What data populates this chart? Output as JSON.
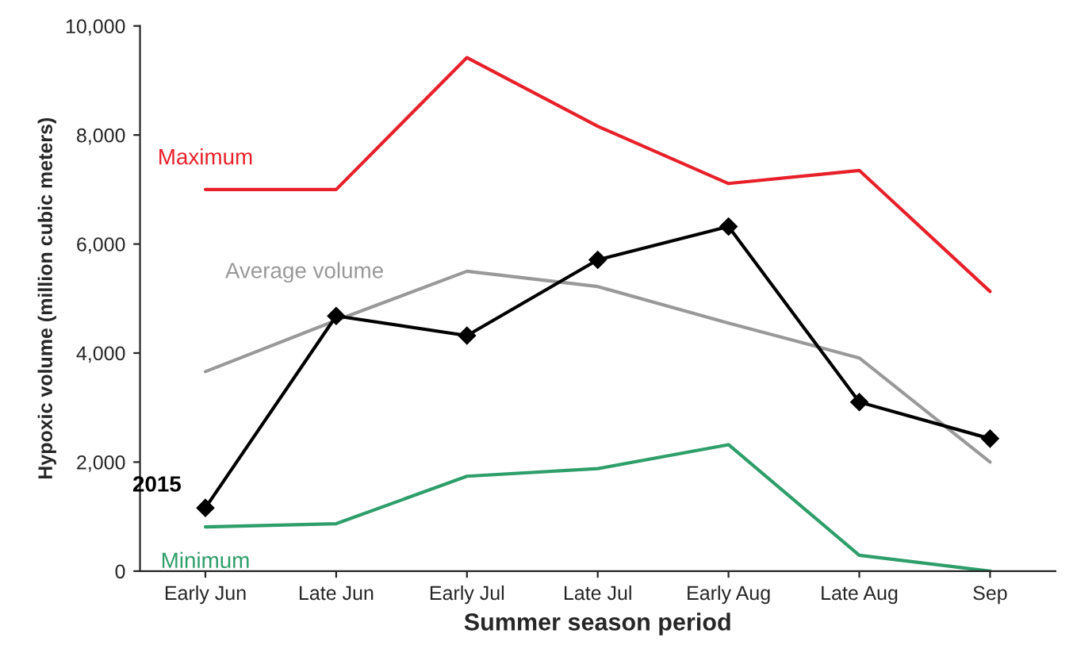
{
  "chart_data": {
    "type": "line",
    "xlabel": "Summer season period",
    "ylabel": "Hypoxic volume (million cubic meters)",
    "categories": [
      "Early Jun",
      "Late Jun",
      "Early Jul",
      "Late Jul",
      "Early Aug",
      "Late Aug",
      "Sep"
    ],
    "series": [
      {
        "name": "Maximum",
        "color": "#e8202a",
        "marker": "none",
        "values": [
          7000,
          7000,
          9420,
          8160,
          7110,
          7350,
          5130
        ]
      },
      {
        "name": "Average volume",
        "color": "#999999",
        "marker": "none",
        "values": [
          3660,
          4600,
          5500,
          5220,
          4550,
          3910,
          2000
        ]
      },
      {
        "name": "2015",
        "color": "#000000",
        "marker": "diamond",
        "values": [
          1160,
          4680,
          4320,
          5710,
          6320,
          3100,
          2430
        ]
      },
      {
        "name": "Minimum",
        "color": "#2e9e6a",
        "marker": "none",
        "values": [
          810,
          870,
          1740,
          1880,
          2320,
          290,
          0
        ]
      }
    ],
    "ylim": [
      0,
      10000
    ],
    "yticks": [
      {
        "value": 0,
        "label": "0"
      },
      {
        "value": 2000,
        "label": "2,000"
      },
      {
        "value": 4000,
        "label": "4,000"
      },
      {
        "value": 6000,
        "label": "6,000"
      },
      {
        "value": 8000,
        "label": "8,000"
      },
      {
        "value": 10000,
        "label": "10,000"
      }
    ],
    "grid": false,
    "legend": false
  }
}
